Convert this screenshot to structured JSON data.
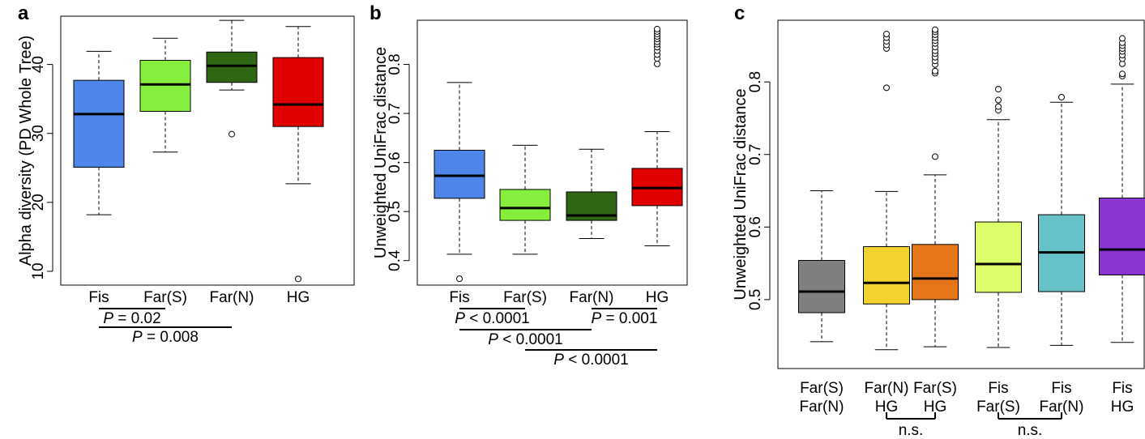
{
  "panels": [
    {
      "letter": "a"
    },
    {
      "letter": "b"
    },
    {
      "letter": "c"
    }
  ],
  "chart_data": [
    {
      "type": "boxplot",
      "panel": "a",
      "ylabel": "Alpha diversity (PD Whole Tree)",
      "ylim": [
        8,
        47
      ],
      "yticks": [
        10,
        20,
        30,
        40
      ],
      "categories": [
        "Fis",
        "Far(S)",
        "Far(N)",
        "HG"
      ],
      "colors": [
        "#4d86e8",
        "#86ef3d",
        "#2e6613",
        "#e00000"
      ],
      "boxes": [
        {
          "whisker_low": 18.2,
          "q1": 25.1,
          "median": 32.8,
          "q3": 37.7,
          "whisker_high": 41.9,
          "outliers": []
        },
        {
          "whisker_low": 27.3,
          "q1": 33.2,
          "median": 37.1,
          "q3": 40.6,
          "whisker_high": 43.8,
          "outliers": []
        },
        {
          "whisker_low": 36.3,
          "q1": 37.4,
          "median": 39.8,
          "q3": 41.8,
          "whisker_high": 46.4,
          "outliers": [
            29.9
          ]
        },
        {
          "whisker_low": 22.7,
          "q1": 31.0,
          "median": 34.2,
          "q3": 41.0,
          "whisker_high": 45.5,
          "outliers": [
            8.9
          ]
        }
      ],
      "comparisons": [
        {
          "from": 0,
          "to": 1,
          "label_italic": "P",
          "label_rest": " = 0.02",
          "row": 0
        },
        {
          "from": 0,
          "to": 2,
          "label_italic": "P",
          "label_rest": " = 0.008",
          "row": 1
        }
      ]
    },
    {
      "type": "boxplot",
      "panel": "b",
      "ylabel": "Unweighted UniFrac distance",
      "ylim": [
        0.35,
        0.89
      ],
      "yticks": [
        0.4,
        0.5,
        0.6,
        0.7,
        0.8
      ],
      "categories": [
        "Fis",
        "Far(S)",
        "Far(N)",
        "HG"
      ],
      "colors": [
        "#4d86e8",
        "#86ef3d",
        "#2e6613",
        "#e00000"
      ],
      "boxes": [
        {
          "whisker_low": 0.413,
          "q1": 0.527,
          "median": 0.573,
          "q3": 0.625,
          "whisker_high": 0.763,
          "outliers": [
            0.363
          ]
        },
        {
          "whisker_low": 0.413,
          "q1": 0.482,
          "median": 0.507,
          "q3": 0.545,
          "whisker_high": 0.635,
          "outliers": []
        },
        {
          "whisker_low": 0.445,
          "q1": 0.482,
          "median": 0.492,
          "q3": 0.54,
          "whisker_high": 0.627,
          "outliers": []
        },
        {
          "whisker_low": 0.43,
          "q1": 0.512,
          "median": 0.548,
          "q3": 0.588,
          "whisker_high": 0.663,
          "outliers": [
            0.801,
            0.812,
            0.82,
            0.828,
            0.835,
            0.841,
            0.846,
            0.852,
            0.857,
            0.862,
            0.867,
            0.872
          ]
        }
      ],
      "comparisons": [
        {
          "from": 0,
          "to": 1,
          "label_italic": "P",
          "label_rest": " < 0.0001",
          "row": 0
        },
        {
          "from": 2,
          "to": 3,
          "label_italic": "P",
          "label_rest": " = 0.001",
          "row": 0
        },
        {
          "from": 0,
          "to": 2,
          "label_italic": "P",
          "label_rest": " < 0.0001",
          "row": 1
        },
        {
          "from": 1,
          "to": 3,
          "label_italic": "P",
          "label_rest": " < 0.0001",
          "row": 2
        }
      ]
    },
    {
      "type": "boxplot",
      "panel": "c",
      "ylabel": "Unweighted UniFrac distance",
      "ylim": [
        0.405,
        0.885
      ],
      "yticks": [
        0.5,
        0.6,
        0.7,
        0.8
      ],
      "categories": [
        [
          "Far(S)",
          "Far(N)"
        ],
        [
          "Far(N)",
          "HG"
        ],
        [
          "Far(S)",
          "HG"
        ],
        [
          "Fis",
          "Far(S)"
        ],
        [
          "Fis",
          "Far(N)"
        ],
        [
          "Fis",
          "HG"
        ]
      ],
      "colors": [
        "#7f7f7f",
        "#f2d22e",
        "#e5761a",
        "#ddff6a",
        "#66c1c8",
        "#8a35cf"
      ],
      "boxes": [
        {
          "whisker_low": 0.442,
          "q1": 0.482,
          "median": 0.511,
          "q3": 0.554,
          "whisker_high": 0.65,
          "outliers": []
        },
        {
          "whisker_low": 0.431,
          "q1": 0.494,
          "median": 0.523,
          "q3": 0.573,
          "whisker_high": 0.649,
          "outliers": [
            0.792,
            0.846,
            0.851,
            0.856,
            0.861,
            0.866
          ]
        },
        {
          "whisker_low": 0.435,
          "q1": 0.5,
          "median": 0.529,
          "q3": 0.576,
          "whisker_high": 0.672,
          "outliers": [
            0.697,
            0.812,
            0.815,
            0.824,
            0.829,
            0.834,
            0.839,
            0.843,
            0.848,
            0.853,
            0.857,
            0.861,
            0.865,
            0.869,
            0.872
          ]
        },
        {
          "whisker_low": 0.434,
          "q1": 0.51,
          "median": 0.549,
          "q3": 0.607,
          "whisker_high": 0.748,
          "outliers": [
            0.761,
            0.766,
            0.775,
            0.79
          ]
        },
        {
          "whisker_low": 0.437,
          "q1": 0.511,
          "median": 0.565,
          "q3": 0.617,
          "whisker_high": 0.772,
          "outliers": [
            0.779
          ]
        },
        {
          "whisker_low": 0.441,
          "q1": 0.534,
          "median": 0.569,
          "q3": 0.64,
          "whisker_high": 0.797,
          "outliers": [
            0.808,
            0.811,
            0.825,
            0.832,
            0.837,
            0.842,
            0.846,
            0.85,
            0.854,
            0.86
          ]
        }
      ],
      "comparisons": [
        {
          "from": 1,
          "to": 2,
          "label": "n.s.",
          "row": 0
        },
        {
          "from": 3,
          "to": 4,
          "label": "n.s.",
          "row": 0
        }
      ]
    }
  ]
}
